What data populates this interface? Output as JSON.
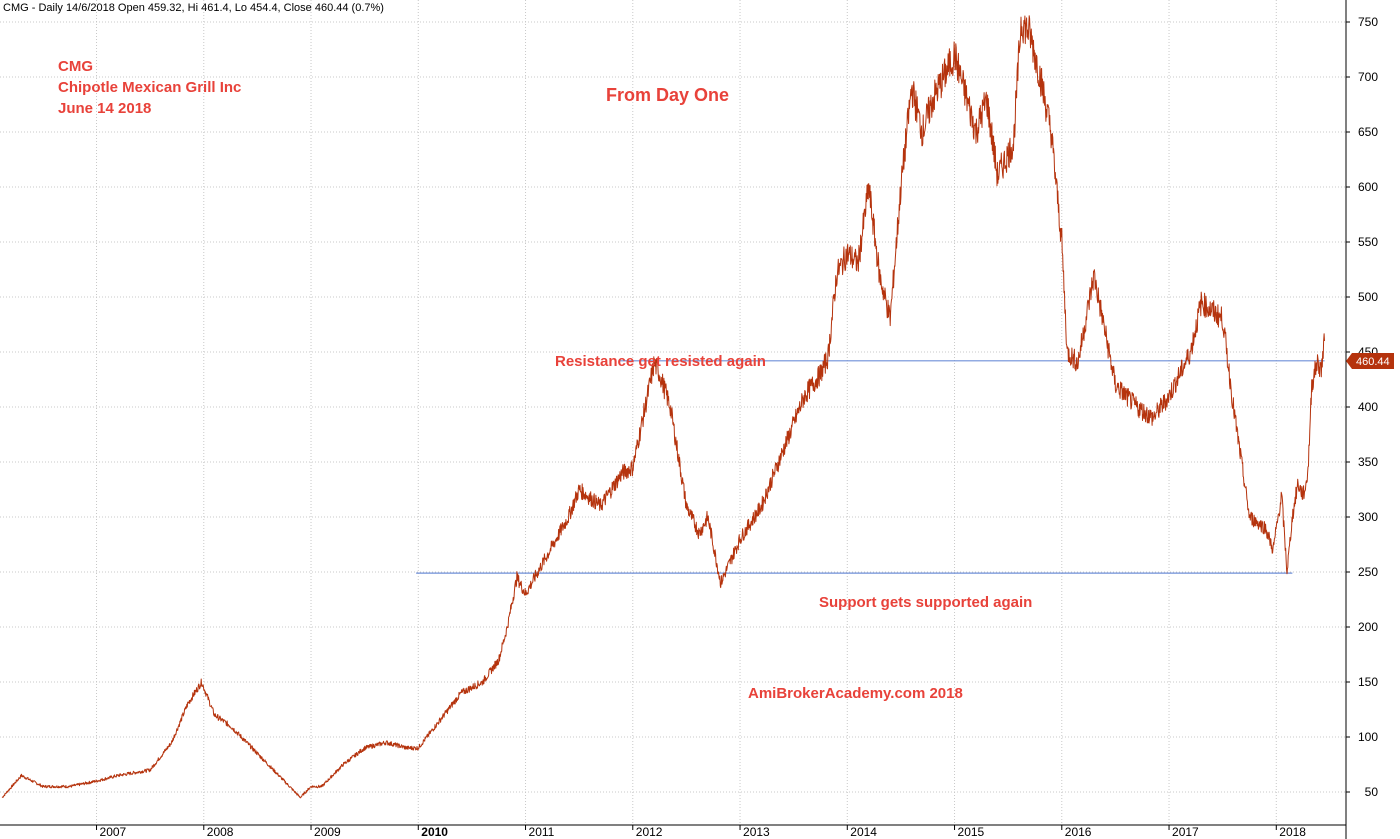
{
  "header": {
    "text": "CMG - Daily 14/6/2018 Open 459.32, Hi 461.4, Lo 454.4, Close 460.44 (0.7%)"
  },
  "annotations": {
    "ticker": "CMG",
    "company": "Chipotle Mexican Grill Inc",
    "date": "June 14 2018",
    "subtitle": "From Day One",
    "resistance": "Resistance get resisted again",
    "support": "Support gets supported again",
    "watermark": "AmiBrokerAcademy.com  2018"
  },
  "last_price_label": "460.44",
  "colors": {
    "price": "#b5330d",
    "levels": "#6f8fd8",
    "annotation": "#e8423a",
    "grid": "#c8c8c8",
    "last_price_bg": "#b5330d"
  },
  "chart_data": {
    "type": "line",
    "title": "",
    "xlabel": "",
    "ylabel": "",
    "xlim": [
      2006.1,
      2018.65
    ],
    "ylim": [
      20,
      770
    ],
    "grid": true,
    "y_axis_side": "right",
    "y_ticks": [
      50,
      100,
      150,
      200,
      250,
      300,
      350,
      400,
      450,
      500,
      550,
      600,
      650,
      700,
      750
    ],
    "x_ticks": [
      {
        "label": "2007",
        "x": 2007.0
      },
      {
        "label": "2008",
        "x": 2008.0
      },
      {
        "label": "2009",
        "x": 2009.0
      },
      {
        "label": "2010",
        "x": 2010.0,
        "bold": true
      },
      {
        "label": "2011",
        "x": 2011.0
      },
      {
        "label": "2012",
        "x": 2012.0
      },
      {
        "label": "2013",
        "x": 2013.0
      },
      {
        "label": "2014",
        "x": 2014.0
      },
      {
        "label": "2015",
        "x": 2015.0
      },
      {
        "label": "2016",
        "x": 2016.0
      },
      {
        "label": "2017",
        "x": 2017.0
      },
      {
        "label": "2018",
        "x": 2018.0
      }
    ],
    "series": [
      {
        "x": [
          2006.12,
          2006.3,
          2006.5,
          2006.75,
          2007.0,
          2007.2,
          2007.5,
          2007.7,
          2007.85,
          2007.98,
          2008.1,
          2008.25,
          2008.5,
          2008.75,
          2008.9,
          2009.0,
          2009.1,
          2009.3,
          2009.5,
          2009.7,
          2009.9,
          2010.0,
          2010.2,
          2010.4,
          2010.6,
          2010.75,
          2010.83,
          2010.92,
          2011.0,
          2011.2,
          2011.4,
          2011.5,
          2011.7,
          2011.9,
          2012.0,
          2012.2,
          2012.25,
          2012.35,
          2012.5,
          2012.62,
          2012.7,
          2012.78,
          2012.82,
          2013.0,
          2013.2,
          2013.4,
          2013.6,
          2013.75,
          2013.82,
          2013.9,
          2014.0,
          2014.1,
          2014.2,
          2014.3,
          2014.4,
          2014.5,
          2014.6,
          2014.7,
          2014.8,
          2015.0,
          2015.2,
          2015.3,
          2015.4,
          2015.55,
          2015.62,
          2015.7,
          2015.8,
          2015.9,
          2016.0,
          2016.05,
          2016.15,
          2016.3,
          2016.5,
          2016.7,
          2016.85,
          2017.0,
          2017.2,
          2017.3,
          2017.5,
          2017.6,
          2017.75,
          2017.9,
          2017.97,
          2018.05,
          2018.1,
          2018.15,
          2018.2,
          2018.25,
          2018.28,
          2018.3,
          2018.33,
          2018.38,
          2018.42,
          2018.45
        ],
        "y": [
          45,
          65,
          55,
          55,
          60,
          65,
          70,
          95,
          130,
          150,
          120,
          110,
          85,
          60,
          45,
          55,
          55,
          75,
          90,
          95,
          90,
          90,
          115,
          140,
          150,
          170,
          200,
          245,
          230,
          265,
          300,
          325,
          310,
          340,
          345,
          440,
          430,
          400,
          310,
          285,
          300,
          260,
          240,
          280,
          310,
          360,
          410,
          430,
          445,
          520,
          540,
          530,
          600,
          520,
          480,
          600,
          690,
          650,
          680,
          720,
          650,
          680,
          610,
          640,
          750,
          740,
          700,
          650,
          550,
          450,
          440,
          520,
          420,
          400,
          390,
          410,
          450,
          495,
          480,
          400,
          300,
          290,
          270,
          320,
          250,
          300,
          330,
          320,
          330,
          350,
          420,
          440,
          435,
          460
        ]
      }
    ],
    "levels": [
      {
        "y": 442,
        "x_start": 2011.88,
        "x_end": 2018.45
      },
      {
        "y": 249,
        "x_start": 2009.98,
        "x_end": 2018.15
      }
    ]
  }
}
